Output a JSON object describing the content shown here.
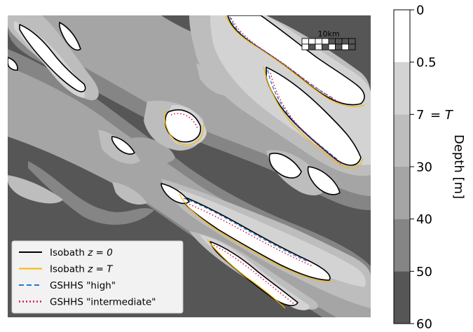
{
  "chart_data": {
    "type": "heatmap",
    "title": "",
    "colorbar": {
      "label": "Depth [m]",
      "ticks": [
        {
          "value": 0,
          "label": "0"
        },
        {
          "value": 0.5,
          "label": "0.5"
        },
        {
          "value": 7,
          "label": "7"
        },
        {
          "value": 30,
          "label": "30"
        },
        {
          "value": 40,
          "label": "40"
        },
        {
          "value": 50,
          "label": "50"
        },
        {
          "value": 60,
          "label": "60"
        }
      ],
      "levels": [
        {
          "from": 0,
          "to": 0.5,
          "color": "#ffffff"
        },
        {
          "from": 0.5,
          "to": 7,
          "color": "#d3d3d3"
        },
        {
          "from": 7,
          "to": 30,
          "color": "#bdbdbd"
        },
        {
          "from": 30,
          "to": 40,
          "color": "#a5a5a5"
        },
        {
          "from": 40,
          "to": 50,
          "color": "#858585"
        },
        {
          "from": 50,
          "to": 60,
          "color": "#565656"
        }
      ],
      "annotation": "= T",
      "annotation_at_value": 7
    },
    "scale_bar": {
      "label": "10km",
      "segments": 8
    },
    "legend": {
      "position": "lower-left",
      "entries": [
        {
          "label_pre": "Isobath ",
          "label_math": "z = 0",
          "color": "#000000",
          "style": "solid"
        },
        {
          "label_pre": "Isobath ",
          "label_math": "z = T",
          "color": "#f5b800",
          "style": "solid"
        },
        {
          "label_pre": "GSHHS \"high\"",
          "label_math": "",
          "color": "#1f77d4",
          "style": "dashed"
        },
        {
          "label_pre": "GSHHS \"intermediate\"",
          "label_math": "",
          "color": "#d6164f",
          "style": "dotted"
        }
      ]
    },
    "colors": {
      "deep_water": "#565656",
      "land": "#ffffff"
    }
  }
}
